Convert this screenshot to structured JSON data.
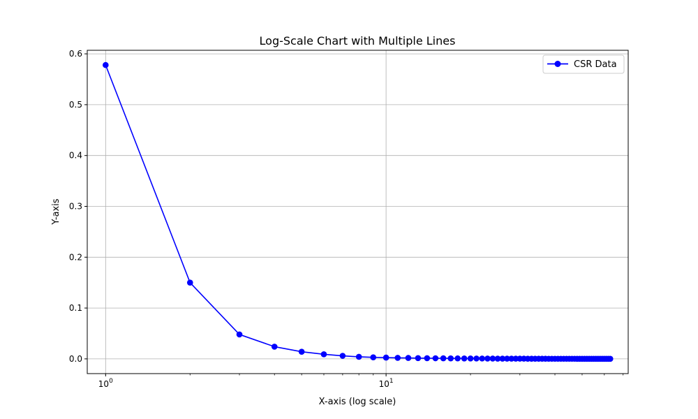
{
  "chart_data": {
    "type": "line",
    "title": "Log-Scale Chart with Multiple Lines",
    "xlabel": "X-axis (log scale)",
    "ylabel": "Y-axis",
    "xscale": "log",
    "xlim": [
      0.86,
      73
    ],
    "ylim": [
      -0.029,
      0.607
    ],
    "grid": true,
    "legend_position": "top-right",
    "x_ticks": [
      {
        "value": 1,
        "base": "10",
        "exponent": "0"
      },
      {
        "value": 10,
        "base": "10",
        "exponent": "1"
      }
    ],
    "y_ticks": [
      {
        "value": 0.0,
        "label": "0.0"
      },
      {
        "value": 0.1,
        "label": "0.1"
      },
      {
        "value": 0.2,
        "label": "0.2"
      },
      {
        "value": 0.3,
        "label": "0.3"
      },
      {
        "value": 0.4,
        "label": "0.4"
      },
      {
        "value": 0.5,
        "label": "0.5"
      },
      {
        "value": 0.6,
        "label": "0.6"
      }
    ],
    "series": [
      {
        "name": "CSR Data",
        "color": "#0000ff",
        "marker": "circle",
        "x": [
          1,
          2,
          3,
          4,
          5,
          6,
          7,
          8,
          9,
          10,
          11,
          12,
          13,
          14,
          15,
          16,
          17,
          18,
          19,
          20,
          21,
          22,
          23,
          24,
          25,
          26,
          27,
          28,
          29,
          30,
          31,
          32,
          33,
          34,
          35,
          36,
          37,
          38,
          39,
          40,
          41,
          42,
          43,
          44,
          45,
          46,
          47,
          48,
          49,
          50,
          51,
          52,
          53,
          54,
          55,
          56,
          57,
          58,
          59,
          60,
          61,
          62,
          63
        ],
        "y": [
          0.578,
          0.15,
          0.048,
          0.024,
          0.014,
          0.009,
          0.006,
          0.004,
          0.003,
          0.0025,
          0.002,
          0.0018,
          0.0015,
          0.0013,
          0.0012,
          0.0011,
          0.001,
          0.0009,
          0.0008,
          0.0008,
          0.0007,
          0.0007,
          0.0006,
          0.0006,
          0.0005,
          0.0005,
          0.0005,
          0.0004,
          0.0004,
          0.0004,
          0.0004,
          0.0003,
          0.0003,
          0.0003,
          0.0003,
          0.0003,
          0.0003,
          0.0002,
          0.0002,
          0.0002,
          0.0002,
          0.0002,
          0.0002,
          0.0002,
          0.0002,
          0.0002,
          0.0002,
          0.0001,
          0.0001,
          0.0001,
          0.0001,
          0.0001,
          0.0001,
          0.0001,
          0.0001,
          0.0001,
          0.0001,
          0.0001,
          0.0001,
          0.0001,
          0.0001,
          0.0001,
          0.0001
        ]
      }
    ]
  }
}
